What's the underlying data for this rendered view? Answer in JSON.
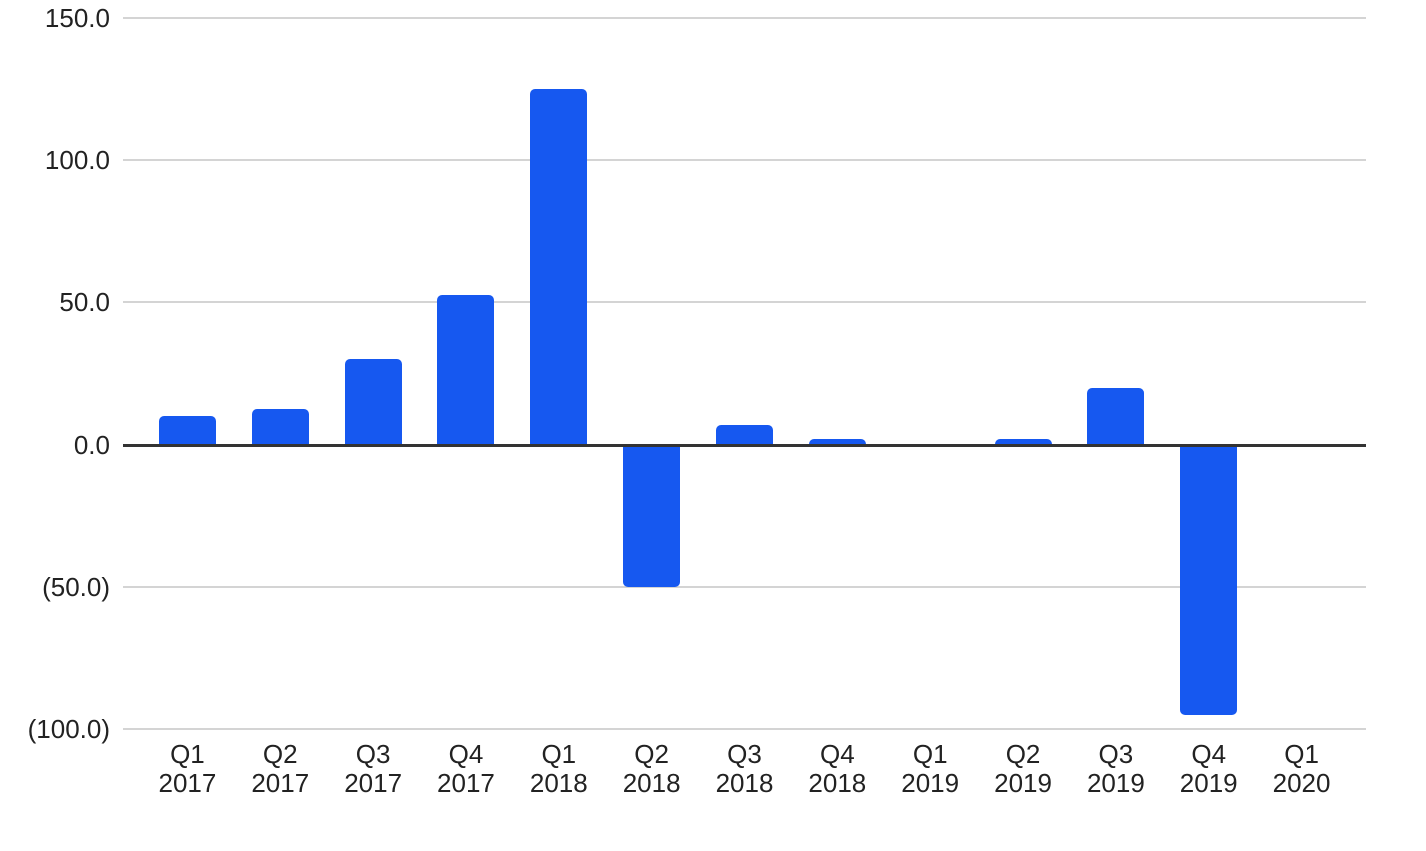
{
  "chart_data": {
    "type": "bar",
    "title": "",
    "xlabel": "",
    "ylabel": "",
    "categories": [
      "Q1 2017",
      "Q2 2017",
      "Q3 2017",
      "Q4 2017",
      "Q1 2018",
      "Q2 2018",
      "Q3 2018",
      "Q4 2018",
      "Q1 2019",
      "Q2 2019",
      "Q3 2019",
      "Q4 2019",
      "Q1 2020"
    ],
    "values": [
      10,
      12.5,
      30,
      52.5,
      125,
      -50,
      7,
      2,
      0,
      2,
      20,
      -95,
      0
    ],
    "ylim": [
      -100,
      150
    ],
    "ytick_values": [
      150,
      100,
      50,
      0,
      -50,
      -100
    ],
    "ytick_labels": [
      "150.0",
      "100.0",
      "50.0",
      "0.0",
      "(50.0)",
      "(100.0)"
    ],
    "negative_number_format": "parentheses",
    "grid": true,
    "legend_position": "none",
    "bar_color": "#1658F0",
    "gridline_color": "#d4d4d4",
    "zero_line_color": "#333333",
    "label_color": "#222222",
    "background_color": "#ffffff"
  }
}
